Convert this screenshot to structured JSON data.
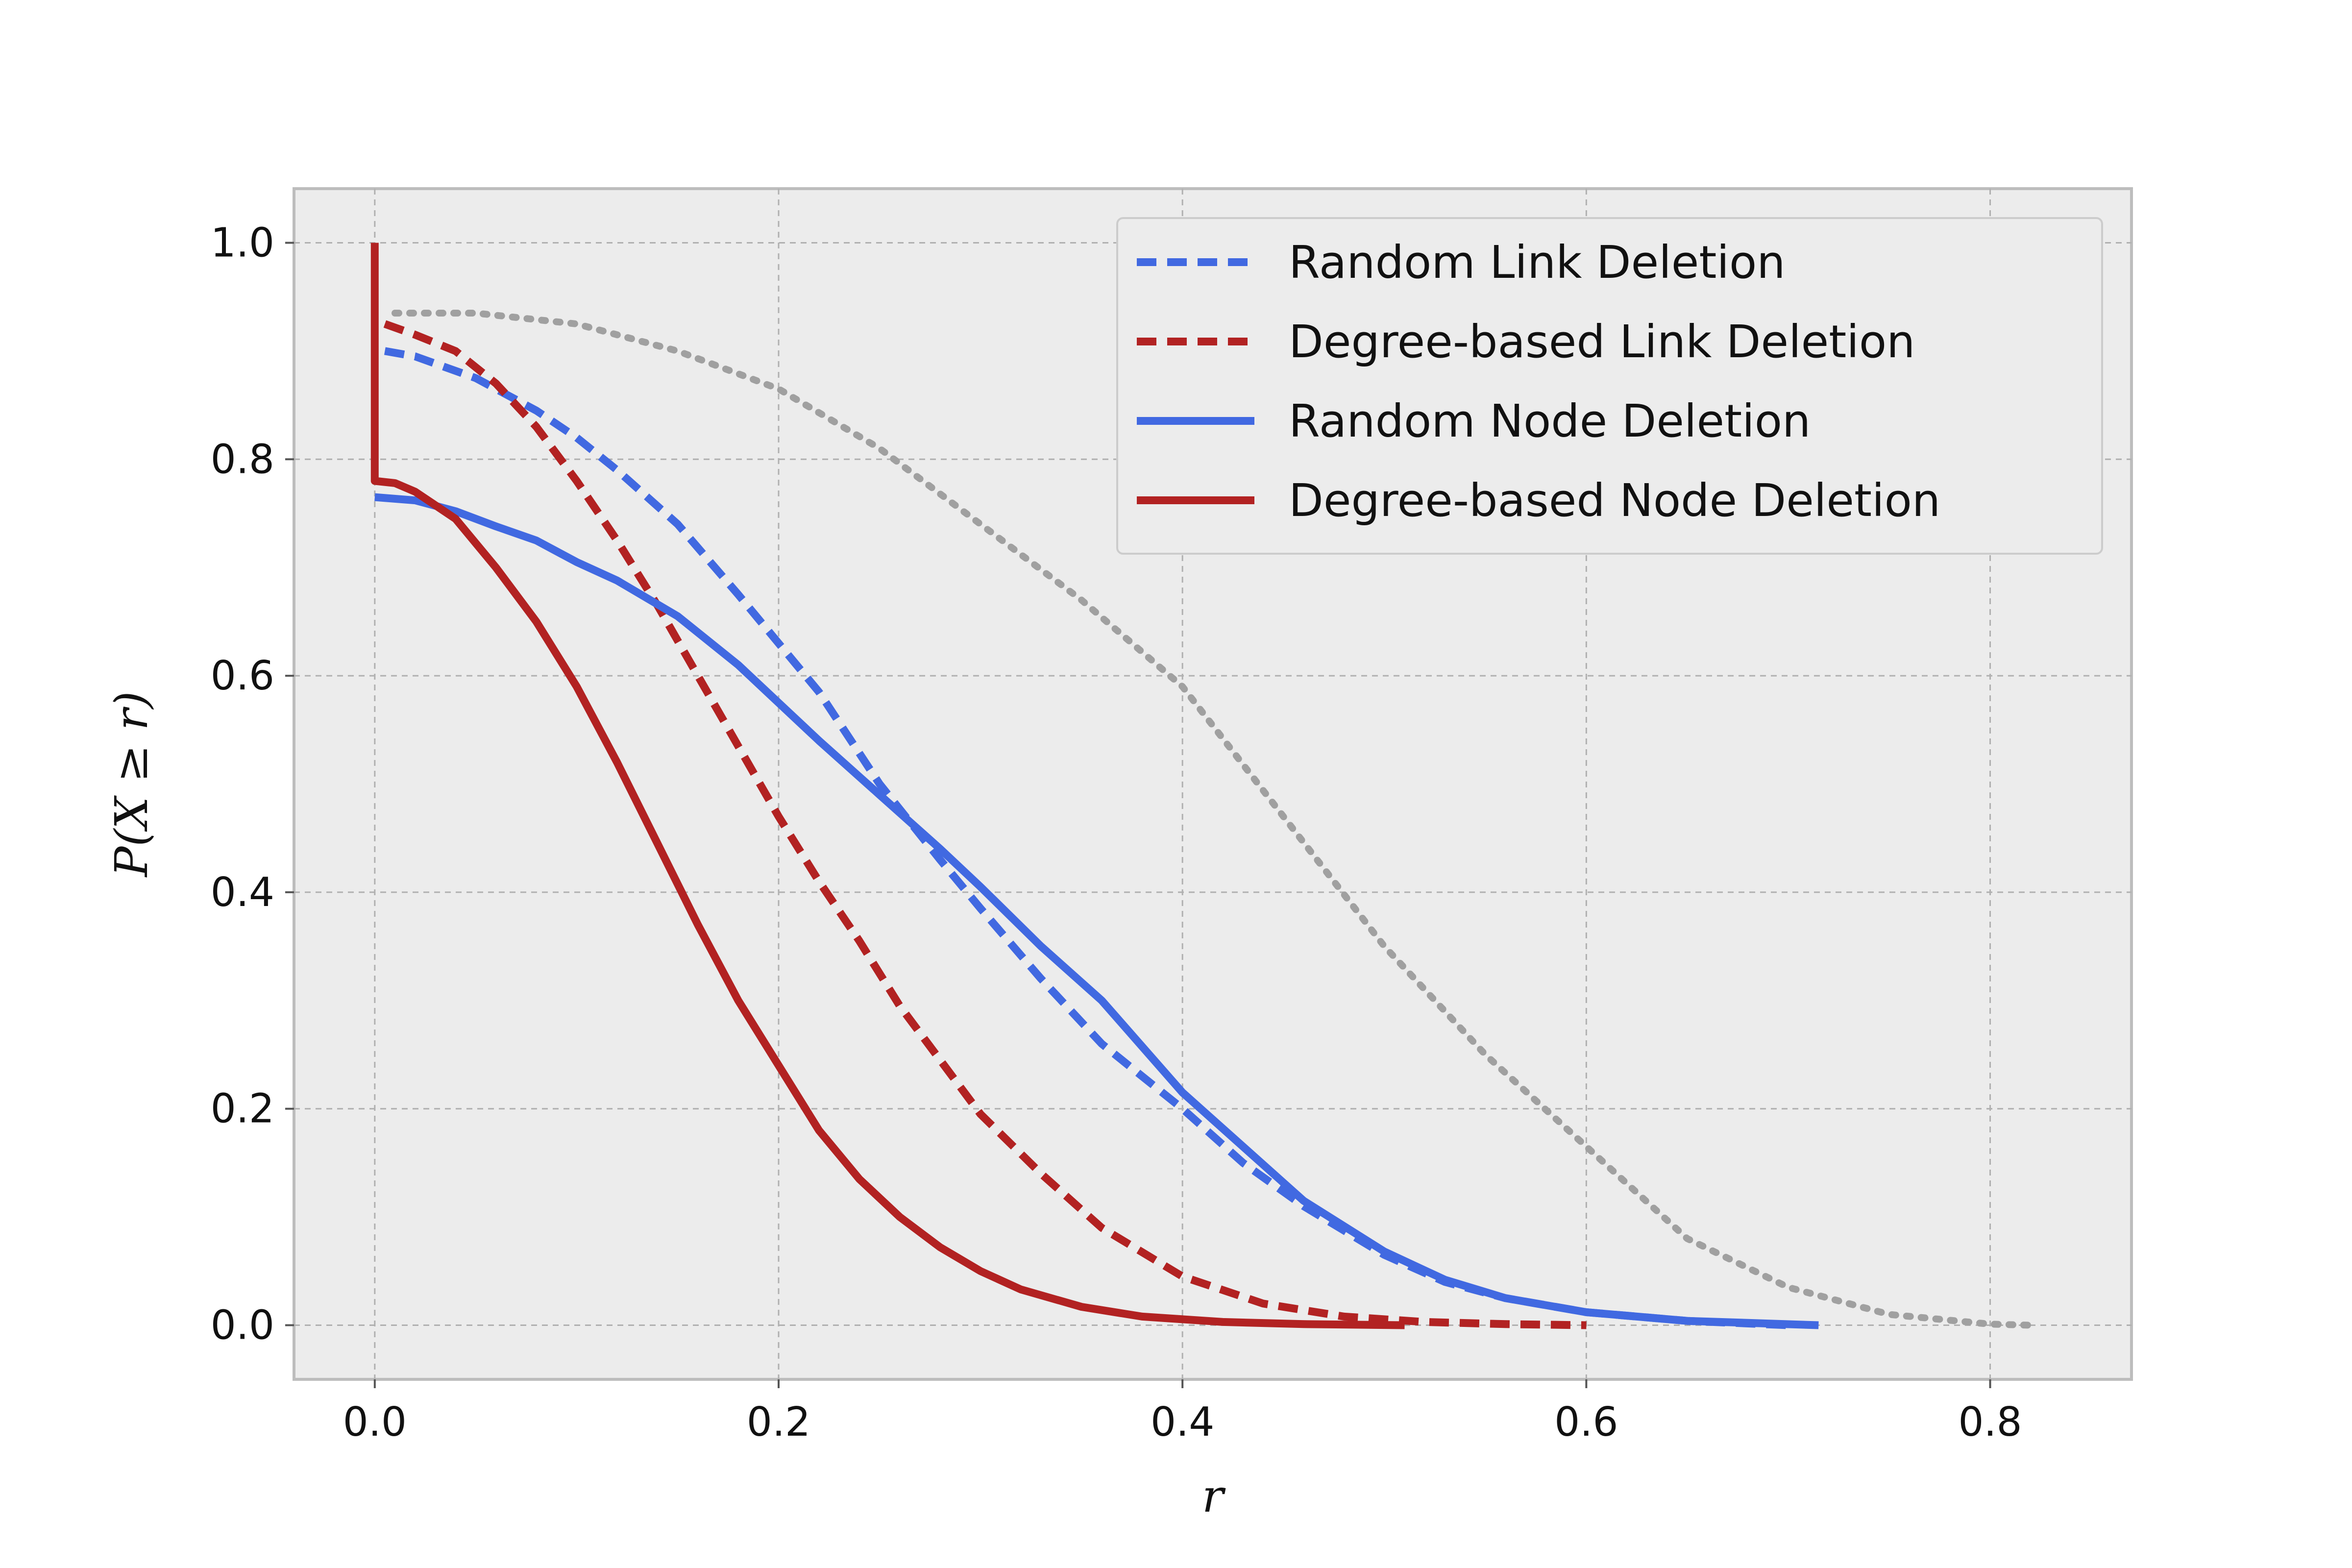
{
  "chart_data": {
    "type": "line",
    "title": "",
    "xlabel": "r",
    "ylabel": "P(X ≥ r)",
    "xlim": [
      -0.04,
      0.87
    ],
    "ylim": [
      -0.05,
      1.05
    ],
    "xticks": [
      0.0,
      0.2,
      0.4,
      0.6,
      0.8
    ],
    "yticks": [
      0.0,
      0.2,
      0.4,
      0.6,
      0.8,
      1.0
    ],
    "xtick_labels": [
      "0.0",
      "0.2",
      "0.4",
      "0.6",
      "0.8"
    ],
    "ytick_labels": [
      "0.0",
      "0.2",
      "0.4",
      "0.6",
      "0.8",
      "1.0"
    ],
    "grid": true,
    "legend_position": "top-right",
    "background": "#ececec",
    "series": [
      {
        "name": "Random Link Deletion",
        "style": "dashed",
        "color": "#4169e1",
        "x": [
          0.005,
          0.02,
          0.05,
          0.08,
          0.1,
          0.12,
          0.15,
          0.18,
          0.2,
          0.22,
          0.25,
          0.28,
          0.3,
          0.33,
          0.36,
          0.4,
          0.43,
          0.46,
          0.5,
          0.53,
          0.56,
          0.6,
          0.65,
          0.7
        ],
        "y": [
          0.9,
          0.895,
          0.875,
          0.845,
          0.82,
          0.79,
          0.74,
          0.675,
          0.63,
          0.585,
          0.5,
          0.43,
          0.385,
          0.32,
          0.26,
          0.2,
          0.15,
          0.11,
          0.065,
          0.04,
          0.025,
          0.012,
          0.004,
          0.0
        ]
      },
      {
        "name": "Degree-based Link Deletion",
        "style": "dashed",
        "color": "#b22222",
        "x": [
          0.005,
          0.02,
          0.04,
          0.06,
          0.08,
          0.1,
          0.12,
          0.14,
          0.16,
          0.18,
          0.2,
          0.22,
          0.24,
          0.26,
          0.28,
          0.3,
          0.33,
          0.36,
          0.4,
          0.44,
          0.48,
          0.52,
          0.56,
          0.6
        ],
        "y": [
          0.925,
          0.915,
          0.9,
          0.87,
          0.83,
          0.78,
          0.725,
          0.665,
          0.6,
          0.535,
          0.47,
          0.41,
          0.355,
          0.295,
          0.245,
          0.195,
          0.14,
          0.09,
          0.045,
          0.02,
          0.008,
          0.003,
          0.001,
          0.0
        ]
      },
      {
        "name": "Random Node Deletion",
        "style": "solid",
        "color": "#4169e1",
        "x": [
          0.0,
          0.02,
          0.04,
          0.06,
          0.08,
          0.1,
          0.12,
          0.15,
          0.18,
          0.2,
          0.22,
          0.25,
          0.28,
          0.3,
          0.33,
          0.36,
          0.4,
          0.43,
          0.46,
          0.5,
          0.53,
          0.56,
          0.6,
          0.65,
          0.715
        ],
        "y": [
          0.765,
          0.762,
          0.752,
          0.738,
          0.725,
          0.705,
          0.688,
          0.655,
          0.61,
          0.575,
          0.54,
          0.49,
          0.44,
          0.405,
          0.35,
          0.3,
          0.215,
          0.165,
          0.115,
          0.068,
          0.042,
          0.025,
          0.012,
          0.004,
          0.0
        ]
      },
      {
        "name": "Degree-based Node Deletion",
        "style": "solid",
        "color": "#b22222",
        "x": [
          0.0,
          0.0,
          0.0,
          0.01,
          0.02,
          0.04,
          0.06,
          0.08,
          0.1,
          0.12,
          0.14,
          0.16,
          0.18,
          0.2,
          0.22,
          0.24,
          0.26,
          0.28,
          0.3,
          0.32,
          0.35,
          0.38,
          0.42,
          0.46,
          0.51
        ],
        "y": [
          1.0,
          0.78,
          0.78,
          0.778,
          0.77,
          0.745,
          0.7,
          0.65,
          0.59,
          0.52,
          0.445,
          0.37,
          0.3,
          0.24,
          0.18,
          0.135,
          0.1,
          0.072,
          0.05,
          0.033,
          0.017,
          0.008,
          0.003,
          0.001,
          0.0
        ]
      },
      {
        "name": "",
        "style": "dotted",
        "color": "#a0a0a0",
        "x": [
          0.01,
          0.05,
          0.1,
          0.15,
          0.2,
          0.25,
          0.3,
          0.35,
          0.4,
          0.45,
          0.5,
          0.55,
          0.6,
          0.65,
          0.7,
          0.75,
          0.8,
          0.82
        ],
        "y": [
          0.935,
          0.935,
          0.925,
          0.9,
          0.865,
          0.81,
          0.74,
          0.67,
          0.59,
          0.47,
          0.35,
          0.25,
          0.165,
          0.08,
          0.035,
          0.01,
          0.001,
          0.0
        ]
      }
    ]
  }
}
